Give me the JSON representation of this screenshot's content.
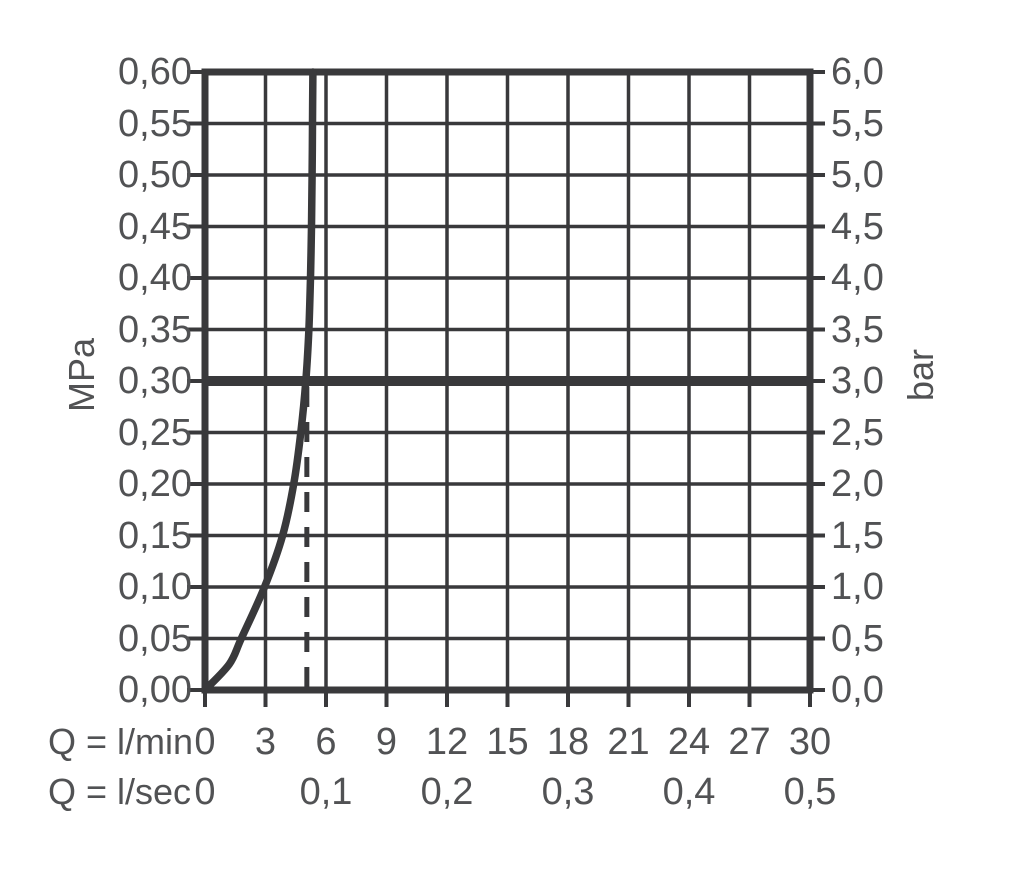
{
  "chart_data": {
    "type": "line",
    "title": "",
    "x_axis": {
      "label_row1": "Q = l/min",
      "label_row2": "Q = l/sec",
      "min": 0,
      "max": 30,
      "step": 3,
      "ticks_lmin": [
        "0",
        "3",
        "6",
        "9",
        "12",
        "15",
        "18",
        "21",
        "24",
        "27",
        "30"
      ],
      "ticks_lsec": {
        "values": [
          0,
          6,
          12,
          18,
          24,
          30
        ],
        "labels": [
          "0",
          "0,1",
          "0,2",
          "0,3",
          "0,4",
          "0,5"
        ]
      }
    },
    "y_axis_left": {
      "unit": "MPa",
      "min": 0,
      "max": 0.6,
      "step": 0.05,
      "ticks": [
        "0,60",
        "0,55",
        "0,50",
        "0,45",
        "0,40",
        "0,35",
        "0,30",
        "0,25",
        "0,20",
        "0,15",
        "0,10",
        "0,05",
        "0,00"
      ]
    },
    "y_axis_right": {
      "unit": "bar",
      "min": 0,
      "max": 6,
      "step": 0.5,
      "ticks": [
        "6,0",
        "5,5",
        "5,0",
        "4,5",
        "4,0",
        "3,5",
        "3,0",
        "2,5",
        "2,0",
        "1,5",
        "1,0",
        "0,5",
        "0,0"
      ]
    },
    "grid": "on",
    "series": [
      {
        "name": "flow-curve",
        "points": [
          [
            0,
            0
          ],
          [
            1.2,
            0.025
          ],
          [
            1.8,
            0.05
          ],
          [
            2.95,
            0.1
          ],
          [
            3.85,
            0.15
          ],
          [
            4.4,
            0.2
          ],
          [
            4.75,
            0.25
          ],
          [
            5.0,
            0.3
          ],
          [
            5.15,
            0.35
          ],
          [
            5.23,
            0.4
          ],
          [
            5.28,
            0.45
          ],
          [
            5.31,
            0.5
          ],
          [
            5.33,
            0.55
          ],
          [
            5.35,
            0.6
          ]
        ]
      }
    ],
    "reference_lines": {
      "horizontal_pressure_mpa": 0.3,
      "horizontal_pressure_bar": 3.0,
      "vertical_dashed_flow_lmin": 5.05
    },
    "colors": {
      "line": "#39393b",
      "text": "#515254",
      "background": "#ffffff"
    }
  }
}
